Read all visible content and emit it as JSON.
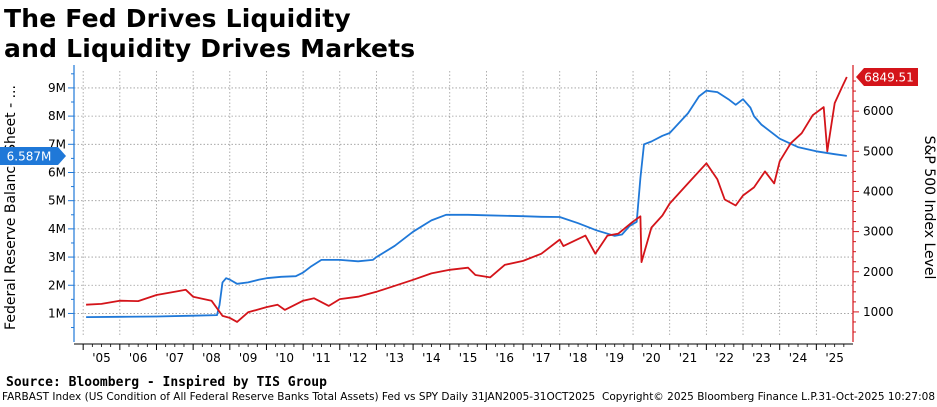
{
  "title": {
    "line1": "The Fed Drives Liquidity",
    "line2": "and Liquidity Drives Markets"
  },
  "source": "Source: Bloomberg - Inspired by TIS Group",
  "footer": {
    "description": "FARBAST Index (US Condition of All Federal Reserve Banks Total Assets) Fed vs SPY Daily 31JAN2005-31OCT2025",
    "copyright": "Copyright© 2025 Bloomberg Finance L.P.",
    "timestamp": "31-Oct-2025 10:27:08"
  },
  "colors": {
    "fed": "#1f78d8",
    "spx": "#d4141a",
    "grid": "#9a9a9a"
  },
  "chart_data": {
    "type": "line",
    "x_range": [
      2004.75,
      2026.0
    ],
    "x_ticks": [
      "'05",
      "'06",
      "'07",
      "'08",
      "'09",
      "'10",
      "'11",
      "'12",
      "'13",
      "'14",
      "'15",
      "'16",
      "'17",
      "'18",
      "'19",
      "'20",
      "'21",
      "'22",
      "'23",
      "'24",
      "'25"
    ],
    "left_axis": {
      "label": "Federal Reserve Balance Sheet - ...",
      "range": [
        0.2,
        9.6
      ],
      "ticks": [
        1,
        2,
        3,
        4,
        5,
        6,
        7,
        8,
        9
      ],
      "tick_labels": [
        "1M",
        "2M",
        "3M",
        "4M",
        "5M",
        "6M",
        "7M",
        "8M",
        "9M"
      ],
      "last_value_label": "6.587M"
    },
    "right_axis": {
      "label": "S&P 500 Index Level",
      "range": [
        400,
        7000
      ],
      "ticks": [
        1000,
        2000,
        3000,
        4000,
        5000,
        6000
      ],
      "tick_labels": [
        "1000",
        "2000",
        "3000",
        "4000",
        "5000",
        "6000"
      ],
      "last_value_label": "6849.51"
    },
    "grid": true,
    "series": [
      {
        "name": "",
        "axis": "left",
        "color": "#1f78d8",
        "x": [
          2005.08,
          2006.0,
          2007.0,
          2008.0,
          2008.65,
          2008.72,
          2008.8,
          2008.9,
          2009.0,
          2009.2,
          2009.5,
          2009.8,
          2010.0,
          2010.4,
          2010.8,
          2011.0,
          2011.2,
          2011.5,
          2012.0,
          2012.5,
          2012.9,
          2013.0,
          2013.5,
          2014.0,
          2014.5,
          2014.9,
          2015.5,
          2016.0,
          2017.0,
          2017.5,
          2018.0,
          2018.5,
          2019.0,
          2019.5,
          2019.7,
          2019.9,
          2020.1,
          2020.2,
          2020.3,
          2020.5,
          2020.8,
          2021.0,
          2021.5,
          2021.8,
          2022.0,
          2022.3,
          2022.6,
          2022.8,
          2023.0,
          2023.2,
          2023.3,
          2023.5,
          2024.0,
          2024.5,
          2025.0,
          2025.5,
          2025.83
        ],
        "y": [
          0.87,
          0.88,
          0.89,
          0.92,
          0.94,
          1.3,
          2.1,
          2.25,
          2.2,
          2.05,
          2.1,
          2.2,
          2.25,
          2.3,
          2.32,
          2.45,
          2.65,
          2.9,
          2.9,
          2.85,
          2.9,
          3.0,
          3.4,
          3.9,
          4.3,
          4.5,
          4.5,
          4.48,
          4.45,
          4.43,
          4.42,
          4.2,
          3.95,
          3.75,
          3.8,
          4.1,
          4.25,
          5.8,
          7.0,
          7.1,
          7.3,
          7.4,
          8.1,
          8.7,
          8.9,
          8.85,
          8.6,
          8.4,
          8.6,
          8.3,
          8.0,
          7.7,
          7.2,
          6.9,
          6.75,
          6.65,
          6.587
        ]
      },
      {
        "name": "",
        "axis": "right",
        "color": "#d4141a",
        "x": [
          2005.08,
          2005.5,
          2006.0,
          2006.5,
          2007.0,
          2007.5,
          2007.8,
          2008.0,
          2008.5,
          2008.8,
          2009.0,
          2009.2,
          2009.5,
          2010.0,
          2010.3,
          2010.5,
          2011.0,
          2011.3,
          2011.7,
          2012.0,
          2012.5,
          2013.0,
          2013.5,
          2014.0,
          2014.5,
          2015.0,
          2015.5,
          2015.7,
          2016.1,
          2016.5,
          2017.0,
          2017.5,
          2018.0,
          2018.1,
          2018.7,
          2018.97,
          2019.3,
          2019.6,
          2020.0,
          2020.2,
          2020.23,
          2020.5,
          2020.8,
          2021.0,
          2021.5,
          2022.0,
          2022.3,
          2022.5,
          2022.8,
          2023.0,
          2023.3,
          2023.6,
          2023.85,
          2024.0,
          2024.3,
          2024.6,
          2024.9,
          2025.2,
          2025.3,
          2025.5,
          2025.7,
          2025.83
        ],
        "y": [
          1180,
          1200,
          1280,
          1270,
          1420,
          1500,
          1550,
          1380,
          1280,
          900,
          850,
          750,
          990,
          1120,
          1180,
          1050,
          1280,
          1340,
          1150,
          1320,
          1380,
          1500,
          1650,
          1800,
          1960,
          2050,
          2100,
          1920,
          1860,
          2170,
          2270,
          2450,
          2800,
          2640,
          2900,
          2450,
          2900,
          2950,
          3250,
          3380,
          2240,
          3100,
          3400,
          3700,
          4200,
          4700,
          4300,
          3800,
          3650,
          3900,
          4100,
          4500,
          4200,
          4750,
          5200,
          5450,
          5900,
          6100,
          5000,
          6200,
          6600,
          6849.51
        ]
      }
    ]
  }
}
